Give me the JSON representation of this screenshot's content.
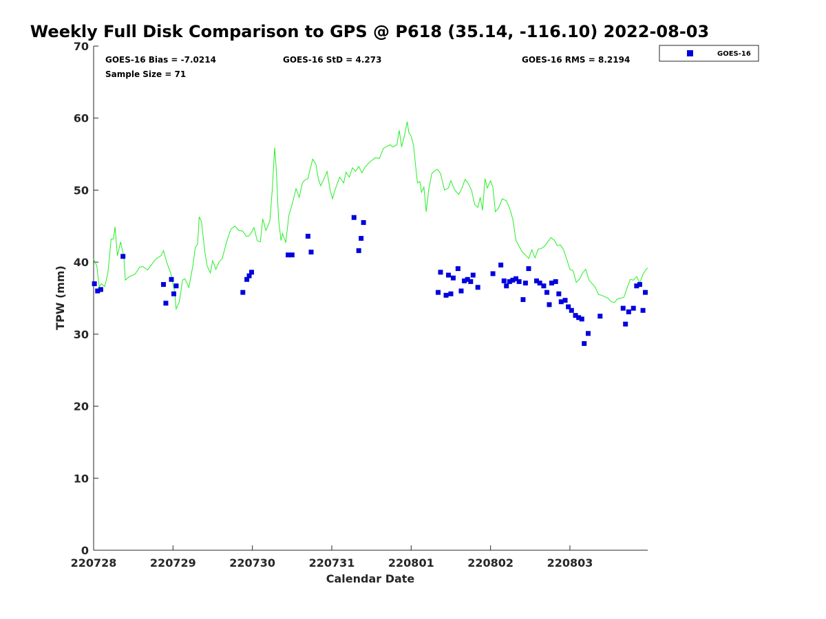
{
  "chart_data": {
    "type": "scatter",
    "title": "Weekly Full Disk Comparison to GPS @ P618 (35.14, -116.10) 2022-08-03",
    "xlabel": "Calendar Date",
    "ylabel": "TPW (mm)",
    "xlim": [
      0,
      6.98
    ],
    "ylim": [
      0,
      70
    ],
    "x_ticks": [
      {
        "x": 0,
        "label": "220728"
      },
      {
        "x": 1,
        "label": "220729"
      },
      {
        "x": 2,
        "label": "220730"
      },
      {
        "x": 3,
        "label": "220731"
      },
      {
        "x": 4,
        "label": "220801"
      },
      {
        "x": 5,
        "label": "220802"
      },
      {
        "x": 6,
        "label": "220803"
      }
    ],
    "y_ticks": [
      0,
      10,
      20,
      30,
      40,
      50,
      60,
      70
    ],
    "grid": false,
    "legend_position": "top-right",
    "stats": {
      "bias": "GOES-16 Bias = -7.0214",
      "std": "GOES-16 StD = 4.273",
      "rms": "GOES-16 RMS = 8.2194",
      "sample_size": "Sample Size = 71"
    },
    "colors": {
      "goes": "#0000dd",
      "gps": "#22ee22",
      "axis": "#262626"
    },
    "series": [
      {
        "name": "GOES-16",
        "kind": "scatter",
        "marker": "square",
        "points": [
          [
            0.01,
            37.0
          ],
          [
            0.05,
            36.0
          ],
          [
            0.09,
            36.2
          ],
          [
            0.37,
            40.8
          ],
          [
            0.88,
            36.9
          ],
          [
            0.91,
            34.3
          ],
          [
            0.98,
            37.6
          ],
          [
            1.01,
            35.6
          ],
          [
            1.04,
            36.7
          ],
          [
            1.88,
            35.8
          ],
          [
            1.93,
            37.6
          ],
          [
            1.96,
            38.1
          ],
          [
            1.99,
            38.6
          ],
          [
            2.45,
            41.0
          ],
          [
            2.5,
            41.0
          ],
          [
            2.7,
            43.6
          ],
          [
            2.74,
            41.4
          ],
          [
            3.28,
            46.2
          ],
          [
            3.34,
            41.6
          ],
          [
            3.37,
            43.3
          ],
          [
            3.4,
            45.5
          ],
          [
            4.34,
            35.8
          ],
          [
            4.37,
            38.6
          ],
          [
            4.44,
            35.4
          ],
          [
            4.47,
            38.2
          ],
          [
            4.5,
            35.6
          ],
          [
            4.53,
            37.8
          ],
          [
            4.59,
            39.1
          ],
          [
            4.63,
            36.0
          ],
          [
            4.67,
            37.4
          ],
          [
            4.71,
            37.6
          ],
          [
            4.75,
            37.3
          ],
          [
            4.78,
            38.2
          ],
          [
            4.84,
            36.5
          ],
          [
            5.03,
            38.4
          ],
          [
            5.13,
            39.6
          ],
          [
            5.17,
            37.4
          ],
          [
            5.2,
            36.7
          ],
          [
            5.24,
            37.3
          ],
          [
            5.28,
            37.5
          ],
          [
            5.32,
            37.7
          ],
          [
            5.36,
            37.3
          ],
          [
            5.41,
            34.8
          ],
          [
            5.44,
            37.1
          ],
          [
            5.48,
            39.1
          ],
          [
            5.58,
            37.4
          ],
          [
            5.62,
            37.1
          ],
          [
            5.67,
            36.7
          ],
          [
            5.71,
            35.8
          ],
          [
            5.74,
            34.1
          ],
          [
            5.77,
            37.1
          ],
          [
            5.82,
            37.3
          ],
          [
            5.86,
            35.6
          ],
          [
            5.89,
            34.5
          ],
          [
            5.94,
            34.7
          ],
          [
            5.98,
            33.8
          ],
          [
            6.02,
            33.3
          ],
          [
            6.07,
            32.6
          ],
          [
            6.11,
            32.3
          ],
          [
            6.15,
            32.1
          ],
          [
            6.18,
            28.7
          ],
          [
            6.23,
            30.1
          ],
          [
            6.38,
            32.5
          ],
          [
            6.67,
            33.6
          ],
          [
            6.7,
            31.4
          ],
          [
            6.74,
            33.1
          ],
          [
            6.8,
            33.6
          ],
          [
            6.84,
            36.7
          ],
          [
            6.88,
            36.9
          ],
          [
            6.92,
            33.3
          ],
          [
            6.95,
            35.8
          ]
        ]
      },
      {
        "name": "GPS",
        "kind": "line",
        "points": [
          [
            0,
            40.4
          ],
          [
            0.04,
            39.5
          ],
          [
            0.07,
            36.6
          ],
          [
            0.1,
            37.0
          ],
          [
            0.14,
            36.6
          ],
          [
            0.18,
            38.5
          ],
          [
            0.22,
            43.2
          ],
          [
            0.25,
            43.2
          ],
          [
            0.27,
            44.9
          ],
          [
            0.3,
            40.9
          ],
          [
            0.34,
            42.8
          ],
          [
            0.38,
            40.8
          ],
          [
            0.4,
            37.5
          ],
          [
            0.45,
            38.0
          ],
          [
            0.52,
            38.3
          ],
          [
            0.58,
            39.3
          ],
          [
            0.62,
            39.4
          ],
          [
            0.68,
            38.9
          ],
          [
            0.72,
            39.5
          ],
          [
            0.78,
            40.4
          ],
          [
            0.85,
            40.9
          ],
          [
            0.88,
            41.6
          ],
          [
            0.92,
            40.0
          ],
          [
            0.97,
            38.5
          ],
          [
            1.02,
            36.0
          ],
          [
            1.04,
            33.5
          ],
          [
            1.08,
            34.5
          ],
          [
            1.12,
            37.5
          ],
          [
            1.15,
            37.7
          ],
          [
            1.2,
            36.5
          ],
          [
            1.25,
            39.5
          ],
          [
            1.28,
            42.0
          ],
          [
            1.31,
            42.5
          ],
          [
            1.33,
            46.3
          ],
          [
            1.36,
            45.6
          ],
          [
            1.4,
            41.5
          ],
          [
            1.43,
            39.5
          ],
          [
            1.47,
            38.5
          ],
          [
            1.5,
            40.2
          ],
          [
            1.54,
            39.0
          ],
          [
            1.58,
            40.0
          ],
          [
            1.62,
            40.5
          ],
          [
            1.68,
            43.0
          ],
          [
            1.73,
            44.6
          ],
          [
            1.78,
            45.0
          ],
          [
            1.83,
            44.4
          ],
          [
            1.88,
            44.3
          ],
          [
            1.92,
            43.6
          ],
          [
            1.95,
            43.6
          ],
          [
            1.98,
            44.0
          ],
          [
            2.02,
            44.8
          ],
          [
            2.06,
            43.0
          ],
          [
            2.1,
            42.8
          ],
          [
            2.13,
            46.0
          ],
          [
            2.17,
            44.4
          ],
          [
            2.22,
            45.7
          ],
          [
            2.25,
            50.0
          ],
          [
            2.28,
            55.9
          ],
          [
            2.3,
            53.0
          ],
          [
            2.33,
            46.0
          ],
          [
            2.36,
            43.0
          ],
          [
            2.38,
            44.0
          ],
          [
            2.42,
            42.7
          ],
          [
            2.46,
            46.5
          ],
          [
            2.5,
            48.0
          ],
          [
            2.55,
            50.2
          ],
          [
            2.59,
            49.0
          ],
          [
            2.63,
            51.0
          ],
          [
            2.66,
            51.4
          ],
          [
            2.7,
            51.6
          ],
          [
            2.73,
            53.0
          ],
          [
            2.76,
            54.3
          ],
          [
            2.8,
            53.6
          ],
          [
            2.83,
            51.6
          ],
          [
            2.86,
            50.6
          ],
          [
            2.9,
            51.5
          ],
          [
            2.94,
            52.6
          ],
          [
            2.98,
            50.0
          ],
          [
            3.01,
            48.8
          ],
          [
            3.04,
            50.0
          ],
          [
            3.1,
            51.8
          ],
          [
            3.15,
            51.0
          ],
          [
            3.18,
            52.5
          ],
          [
            3.22,
            51.8
          ],
          [
            3.26,
            53.1
          ],
          [
            3.3,
            52.6
          ],
          [
            3.34,
            53.3
          ],
          [
            3.38,
            52.4
          ],
          [
            3.42,
            53.2
          ],
          [
            3.46,
            53.7
          ],
          [
            3.5,
            54.1
          ],
          [
            3.55,
            54.5
          ],
          [
            3.6,
            54.4
          ],
          [
            3.65,
            55.8
          ],
          [
            3.7,
            56.1
          ],
          [
            3.74,
            56.3
          ],
          [
            3.77,
            56.0
          ],
          [
            3.82,
            56.3
          ],
          [
            3.85,
            58.3
          ],
          [
            3.88,
            56.0
          ],
          [
            3.92,
            57.8
          ],
          [
            3.95,
            59.5
          ],
          [
            3.97,
            58.0
          ],
          [
            4.0,
            57.5
          ],
          [
            4.03,
            56.2
          ],
          [
            4.06,
            53.0
          ],
          [
            4.08,
            51.0
          ],
          [
            4.11,
            51.2
          ],
          [
            4.13,
            49.7
          ],
          [
            4.16,
            50.4
          ],
          [
            4.19,
            47.0
          ],
          [
            4.22,
            50.0
          ],
          [
            4.26,
            52.3
          ],
          [
            4.3,
            52.7
          ],
          [
            4.33,
            52.9
          ],
          [
            4.37,
            52.3
          ],
          [
            4.42,
            50.0
          ],
          [
            4.47,
            50.3
          ],
          [
            4.5,
            51.3
          ],
          [
            4.55,
            50.0
          ],
          [
            4.6,
            49.4
          ],
          [
            4.64,
            50.3
          ],
          [
            4.68,
            51.5
          ],
          [
            4.72,
            50.9
          ],
          [
            4.76,
            50.0
          ],
          [
            4.8,
            48.0
          ],
          [
            4.84,
            47.6
          ],
          [
            4.87,
            49.0
          ],
          [
            4.9,
            47.2
          ],
          [
            4.93,
            51.6
          ],
          [
            4.96,
            50.3
          ],
          [
            5.0,
            51.3
          ],
          [
            5.03,
            50.4
          ],
          [
            5.06,
            47.0
          ],
          [
            5.1,
            47.5
          ],
          [
            5.15,
            48.8
          ],
          [
            5.2,
            48.5
          ],
          [
            5.24,
            47.5
          ],
          [
            5.28,
            46.0
          ],
          [
            5.32,
            43.0
          ],
          [
            5.36,
            42.2
          ],
          [
            5.4,
            41.4
          ],
          [
            5.44,
            41.0
          ],
          [
            5.48,
            40.5
          ],
          [
            5.52,
            41.7
          ],
          [
            5.56,
            40.6
          ],
          [
            5.6,
            41.8
          ],
          [
            5.64,
            41.9
          ],
          [
            5.68,
            42.2
          ],
          [
            5.72,
            42.8
          ],
          [
            5.76,
            43.4
          ],
          [
            5.8,
            43.1
          ],
          [
            5.84,
            42.3
          ],
          [
            5.88,
            42.4
          ],
          [
            5.92,
            41.7
          ],
          [
            5.96,
            40.4
          ],
          [
            6.0,
            39.0
          ],
          [
            6.04,
            38.8
          ],
          [
            6.08,
            37.2
          ],
          [
            6.12,
            37.6
          ],
          [
            6.16,
            38.5
          ],
          [
            6.2,
            39.0
          ],
          [
            6.24,
            37.5
          ],
          [
            6.28,
            37.0
          ],
          [
            6.32,
            36.5
          ],
          [
            6.36,
            35.5
          ],
          [
            6.4,
            35.4
          ],
          [
            6.44,
            35.2
          ],
          [
            6.48,
            35.0
          ],
          [
            6.52,
            34.5
          ],
          [
            6.56,
            34.4
          ],
          [
            6.6,
            34.9
          ],
          [
            6.64,
            35.0
          ],
          [
            6.68,
            35.1
          ],
          [
            6.72,
            36.4
          ],
          [
            6.76,
            37.6
          ],
          [
            6.8,
            37.5
          ],
          [
            6.84,
            38.0
          ],
          [
            6.88,
            37.1
          ],
          [
            6.92,
            38.3
          ],
          [
            6.96,
            39.0
          ],
          [
            6.98,
            39.2
          ]
        ]
      }
    ]
  }
}
